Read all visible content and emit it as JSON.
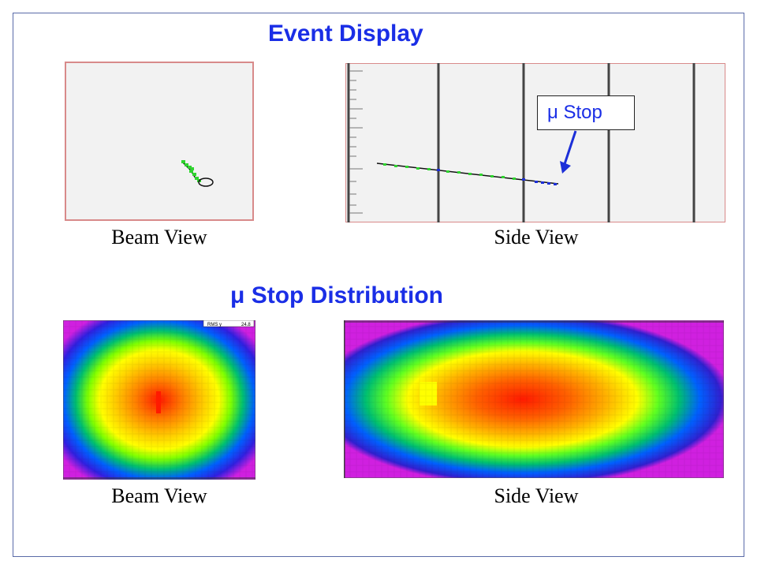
{
  "event_display": {
    "title": "Event Display",
    "beam_view_caption": "Beam View",
    "side_view_caption": "Side View",
    "callout": "μ Stop",
    "histogram_stat_label": "RMS y",
    "histogram_stat_value": "24.8"
  },
  "stop_distribution": {
    "title": "μ Stop Distribution",
    "beam_view_caption": "Beam View",
    "side_view_caption": "Side View"
  },
  "colors": {
    "title": "#1a2ee6",
    "track": "#2fd42f",
    "track_hits_blue": "#1c2fd8",
    "frame": "#5a6aa8",
    "panel_bg": "#f2f2f2",
    "panel_border": "#d88a8a"
  }
}
